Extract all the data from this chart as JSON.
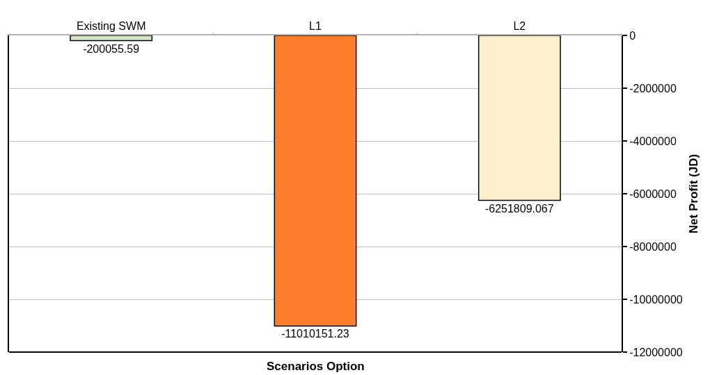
{
  "chart_data": {
    "type": "bar",
    "xlabel": "Scenarios Option",
    "ylabel": "Net Profit (JD)",
    "categories": [
      "Existing SWM",
      "L1",
      "L2"
    ],
    "values": [
      -200055.59,
      -11010151.23,
      -6251809.067
    ],
    "colors": [
      "#d6e8c6",
      "#fe7f2b",
      "#fff0cd"
    ],
    "ylim": [
      -12000000,
      0
    ],
    "yticks": [
      0,
      -2000000,
      -4000000,
      -6000000,
      -8000000,
      -10000000,
      -12000000
    ],
    "grid": "y",
    "data_labels": true
  }
}
